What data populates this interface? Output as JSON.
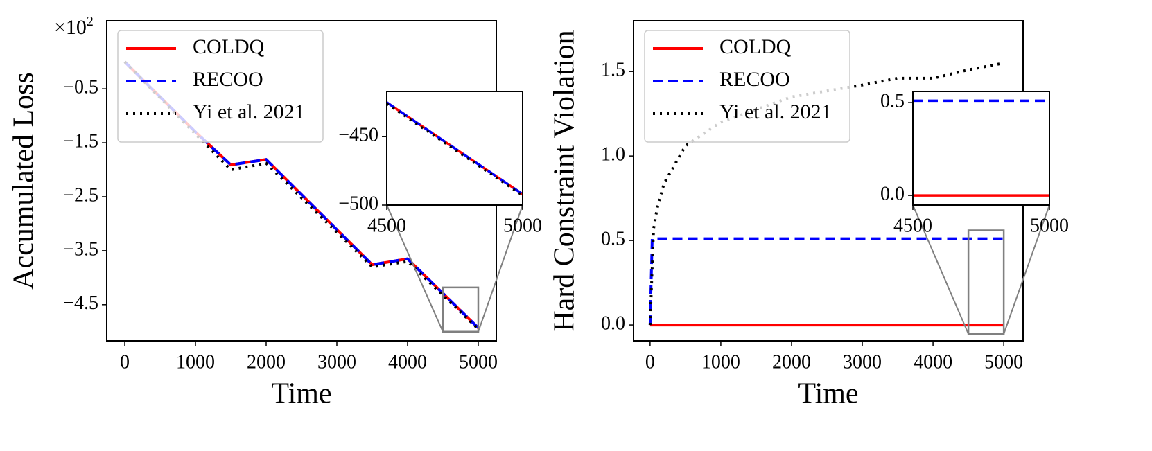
{
  "chart_data": [
    {
      "type": "line",
      "xlabel": "Time",
      "ylabel": "Accumulated Loss",
      "y_multiplier": "×10",
      "y_multiplier_exponent": "2",
      "xlim": [
        -255,
        5255
      ],
      "ylim": [
        -5.17,
        0.76
      ],
      "xticks": [
        0,
        1000,
        2000,
        3000,
        4000,
        5000
      ],
      "yticks": [
        {
          "value": -0.5,
          "label": "−0.5"
        },
        {
          "value": -1.5,
          "label": "−1.5"
        },
        {
          "value": -2.5,
          "label": "−2.5"
        },
        {
          "value": -3.5,
          "label": "−3.5"
        },
        {
          "value": -4.5,
          "label": "−4.5"
        }
      ],
      "legend": "upper left",
      "series": [
        {
          "name": "COLDQ",
          "color": "#ff0000",
          "style": "solid",
          "x": [
            0,
            1000,
            1500,
            2000,
            3500,
            4000,
            5000
          ],
          "values": [
            0.0,
            -1.3,
            -1.91,
            -1.81,
            -3.76,
            -3.65,
            -4.93
          ]
        },
        {
          "name": "RECOO",
          "color": "#0000ff",
          "style": "dashed",
          "x": [
            0,
            1000,
            1500,
            2000,
            3500,
            4000,
            5000
          ],
          "values": [
            0.0,
            -1.3,
            -1.91,
            -1.81,
            -3.76,
            -3.65,
            -4.93
          ]
        },
        {
          "name": "Yi et al. 2021",
          "color": "#000000",
          "style": "dotted",
          "x": [
            0,
            1000,
            1500,
            2000,
            3500,
            4000,
            5000
          ],
          "values": [
            0.0,
            -1.34,
            -2.0,
            -1.88,
            -3.8,
            -3.7,
            -4.95
          ]
        }
      ],
      "inset": {
        "xlim": [
          4500,
          5000
        ],
        "ylim": [
          -500,
          -417
        ],
        "xticks": [
          4500,
          5000
        ],
        "yticks": [
          {
            "value": -450,
            "label": "−450"
          },
          {
            "value": -500,
            "label": "−500"
          }
        ],
        "series": [
          {
            "color": "#ff0000",
            "style": "solid",
            "x": [
              4500,
              5000
            ],
            "values": [
              -425,
              -492
            ]
          },
          {
            "color": "#0000ff",
            "style": "dashed",
            "x": [
              4500,
              5000
            ],
            "values": [
              -425,
              -492
            ]
          },
          {
            "color": "#000000",
            "style": "dotted",
            "x": [
              4500,
              5000
            ],
            "values": [
              -426,
              -493
            ]
          }
        ]
      },
      "zoom_box": {
        "xlim": [
          4500,
          5000
        ],
        "ylim": [
          -5.0,
          -4.18
        ]
      }
    },
    {
      "type": "line",
      "xlabel": "Time",
      "ylabel": "Hard Constraint Violation",
      "xlim": [
        -234,
        5273
      ],
      "ylim": [
        -0.094,
        1.8
      ],
      "xticks": [
        0,
        1000,
        2000,
        3000,
        4000,
        5000
      ],
      "yticks": [
        {
          "value": 0,
          "label": "0.0"
        },
        0.5,
        {
          "value": 1,
          "label": "1.0"
        },
        1.5
      ],
      "legend": "upper left",
      "series": [
        {
          "name": "COLDQ",
          "color": "#ff0000",
          "style": "solid",
          "x": [
            0,
            5000
          ],
          "values": [
            0,
            0
          ]
        },
        {
          "name": "RECOO",
          "color": "#0000ff",
          "style": "dashed",
          "x": [
            0,
            30,
            5000
          ],
          "values": [
            0,
            0.51,
            0.51
          ]
        },
        {
          "name": "Yi et al. 2021",
          "color": "#000000",
          "style": "dotted",
          "x": [
            0,
            50,
            100,
            200,
            500,
            1000,
            2000,
            3000,
            3500,
            4000,
            4500,
            5000
          ],
          "values": [
            0,
            0.57,
            0.69,
            0.84,
            1.06,
            1.2,
            1.35,
            1.42,
            1.46,
            1.46,
            1.51,
            1.55
          ]
        }
      ],
      "inset": {
        "xlim": [
          4500,
          5000
        ],
        "ylim": [
          -0.052,
          0.56
        ],
        "xticks": [
          4500,
          5000
        ],
        "yticks": [
          {
            "value": 0,
            "label": "0.0"
          },
          0.5
        ],
        "series": [
          {
            "color": "#ff0000",
            "style": "solid",
            "x": [
              4500,
              5000
            ],
            "values": [
              0,
              0
            ]
          },
          {
            "color": "#0000ff",
            "style": "dashed",
            "x": [
              4500,
              5000
            ],
            "values": [
              0.51,
              0.51
            ]
          }
        ]
      },
      "zoom_box": {
        "xlim": [
          4500,
          5000
        ],
        "ylim": [
          -0.053,
          0.56
        ]
      }
    }
  ]
}
